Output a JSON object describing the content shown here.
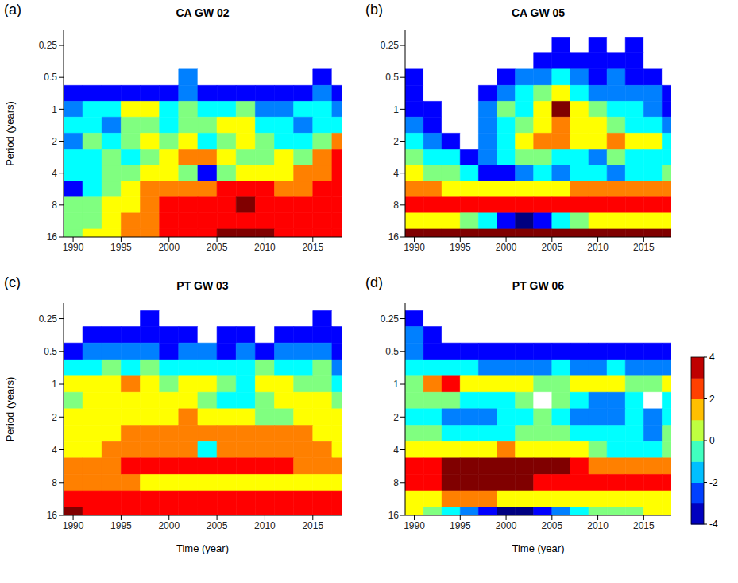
{
  "chart_data": [
    {
      "type": "heatmap",
      "panel": "(a)",
      "title": "CA GW 02",
      "ylabel": "Period (years)",
      "x": [
        1990,
        1992,
        1994,
        1996,
        1998,
        2000,
        2002,
        2004,
        2006,
        2008,
        2010,
        2012,
        2014,
        2016,
        2018
      ],
      "y": [
        0.25,
        0.35,
        0.5,
        0.71,
        1,
        1.41,
        2,
        2.83,
        4,
        5.66,
        8,
        11.31,
        16
      ],
      "cells": [
        [
          null,
          null,
          null,
          null,
          null,
          null,
          null,
          null,
          null,
          null,
          null,
          null,
          null,
          null,
          null
        ],
        [
          null,
          null,
          null,
          null,
          null,
          null,
          null,
          null,
          null,
          null,
          null,
          null,
          null,
          null,
          null
        ],
        [
          null,
          null,
          null,
          null,
          null,
          null,
          -2,
          null,
          null,
          null,
          null,
          null,
          null,
          -3,
          null
        ],
        [
          -3,
          -3,
          -3,
          -3,
          -3,
          -3,
          -2,
          -3,
          -3,
          -3,
          -3,
          -3,
          -3,
          -2,
          -3
        ],
        [
          -2,
          -1,
          -1,
          1,
          1,
          -1,
          0,
          -1,
          -1,
          0,
          -2,
          -2,
          -1,
          -1,
          -2
        ],
        [
          -1,
          -1,
          -2,
          0,
          0,
          -1,
          0,
          0,
          1,
          1,
          -1,
          -1,
          -2,
          -1,
          -1
        ],
        [
          -2,
          0,
          -1,
          0,
          1,
          0,
          1,
          -1,
          0,
          1,
          0,
          -1,
          -1,
          0,
          2
        ],
        [
          -1,
          -1,
          0,
          -1,
          0,
          1,
          2,
          2,
          1,
          0,
          0,
          1,
          0,
          2,
          3
        ],
        [
          -1,
          -1,
          0,
          0,
          1,
          1,
          0,
          -3,
          0,
          1,
          1,
          1,
          2,
          2,
          3
        ],
        [
          -3,
          -1,
          0,
          1,
          2,
          2,
          2,
          2,
          3,
          3,
          3,
          2,
          2,
          3,
          3
        ],
        [
          0,
          0,
          1,
          1,
          2,
          3,
          3,
          3,
          3,
          4,
          3,
          3,
          3,
          3,
          3
        ],
        [
          0,
          0,
          1,
          2,
          2,
          3,
          3,
          3,
          3,
          3,
          3,
          3,
          3,
          3,
          3
        ],
        [
          0,
          1,
          1,
          2,
          2,
          3,
          3,
          3,
          4,
          4,
          4,
          3,
          3,
          3,
          3
        ]
      ],
      "xlim": [
        1989,
        2018
      ],
      "xticks": [
        1990,
        1995,
        2000,
        2005,
        2010,
        2015
      ],
      "ylim": [
        0.18,
        16
      ],
      "yticks": [
        0.25,
        0.5,
        1,
        2,
        4,
        8,
        16
      ],
      "log": "y"
    },
    {
      "type": "heatmap",
      "panel": "(b)",
      "title": "CA GW 05",
      "x": [
        1990,
        1992,
        1994,
        1996,
        1998,
        2000,
        2002,
        2004,
        2006,
        2008,
        2010,
        2012,
        2014,
        2016,
        2018
      ],
      "y": [
        0.25,
        0.35,
        0.5,
        0.71,
        1,
        1.41,
        2,
        2.83,
        4,
        5.66,
        8,
        11.31,
        16
      ],
      "cells": [
        [
          null,
          null,
          null,
          null,
          null,
          null,
          null,
          null,
          -3,
          null,
          -3,
          null,
          -3,
          null,
          null
        ],
        [
          null,
          null,
          null,
          null,
          null,
          null,
          null,
          -3,
          -3,
          -3,
          -3,
          -3,
          -3,
          null,
          null
        ],
        [
          -3,
          null,
          null,
          null,
          null,
          -3,
          -2,
          -2,
          -1,
          -2,
          -3,
          -2,
          -3,
          -3,
          null
        ],
        [
          -3,
          null,
          null,
          null,
          -3,
          -2,
          -1,
          0,
          1,
          -1,
          -2,
          -2,
          -2,
          -2,
          -3
        ],
        [
          -3,
          -3,
          null,
          null,
          -2,
          0,
          -1,
          1,
          4,
          1,
          0,
          -1,
          -1,
          -2,
          -3
        ],
        [
          -2,
          -3,
          null,
          null,
          -2,
          -1,
          0,
          1,
          2,
          1,
          1,
          0,
          -1,
          -1,
          -2
        ],
        [
          -1,
          -2,
          -3,
          null,
          -2,
          -1,
          1,
          2,
          2,
          1,
          1,
          2,
          1,
          1,
          -1
        ],
        [
          0,
          -1,
          -1,
          -3,
          -2,
          -1,
          0,
          0,
          -1,
          -1,
          -2,
          0,
          -1,
          -1,
          -1
        ],
        [
          1,
          0,
          0,
          -1,
          -3,
          -3,
          -2,
          -1,
          -2,
          -1,
          -1,
          -2,
          -1,
          -1,
          0
        ],
        [
          2,
          2,
          1,
          1,
          1,
          1,
          1,
          1,
          1,
          2,
          2,
          2,
          2,
          2,
          2
        ],
        [
          3,
          3,
          3,
          3,
          3,
          3,
          3,
          3,
          3,
          3,
          3,
          3,
          3,
          3,
          3
        ],
        [
          1,
          1,
          1,
          0,
          -1,
          -3,
          -4,
          -3,
          -1,
          0,
          1,
          1,
          1,
          1,
          1
        ],
        [
          4,
          4,
          4,
          4,
          4,
          4,
          4,
          4,
          4,
          4,
          4,
          4,
          4,
          4,
          4
        ]
      ],
      "xlim": [
        1989,
        2018
      ],
      "xticks": [
        1990,
        1995,
        2000,
        2005,
        2010,
        2015
      ],
      "ylim": [
        0.18,
        16
      ],
      "yticks": [
        0.25,
        0.5,
        1,
        2,
        4,
        8,
        16
      ],
      "log": "y"
    },
    {
      "type": "heatmap",
      "panel": "(c)",
      "title": "PT GW 03",
      "ylabel": "Period (years)",
      "xlabel": "Time (year)",
      "x": [
        1990,
        1992,
        1994,
        1996,
        1998,
        2000,
        2002,
        2004,
        2006,
        2008,
        2010,
        2012,
        2014,
        2016,
        2018
      ],
      "y": [
        0.25,
        0.35,
        0.5,
        0.71,
        1,
        1.41,
        2,
        2.83,
        4,
        5.66,
        8,
        11.31,
        16
      ],
      "cells": [
        [
          null,
          null,
          null,
          null,
          -3,
          null,
          null,
          null,
          null,
          null,
          null,
          null,
          null,
          -3,
          null
        ],
        [
          null,
          -3,
          -3,
          -3,
          -3,
          -3,
          -3,
          null,
          -3,
          -3,
          null,
          -3,
          -3,
          -3,
          -3
        ],
        [
          -3,
          -2,
          -2,
          -2,
          -2,
          -3,
          -2,
          -2,
          -3,
          -2,
          -3,
          -2,
          -2,
          -2,
          -3
        ],
        [
          -1,
          -1,
          0,
          -1,
          0,
          -1,
          -1,
          -1,
          -1,
          -1,
          0,
          -1,
          -1,
          0,
          -2
        ],
        [
          1,
          1,
          1,
          2,
          1,
          0,
          1,
          1,
          0,
          -1,
          1,
          1,
          0,
          0,
          -1
        ],
        [
          0,
          1,
          1,
          1,
          1,
          1,
          1,
          0,
          -1,
          -1,
          0,
          1,
          1,
          1,
          0
        ],
        [
          1,
          1,
          1,
          1,
          1,
          1,
          2,
          1,
          1,
          1,
          0,
          0,
          1,
          1,
          1
        ],
        [
          1,
          1,
          1,
          2,
          2,
          2,
          2,
          2,
          2,
          2,
          2,
          2,
          2,
          1,
          1
        ],
        [
          1,
          1,
          2,
          2,
          2,
          2,
          2,
          -1,
          2,
          2,
          2,
          2,
          2,
          2,
          1
        ],
        [
          2,
          2,
          2,
          3,
          3,
          3,
          3,
          3,
          3,
          3,
          3,
          3,
          2,
          2,
          2
        ],
        [
          2,
          2,
          2,
          2,
          1,
          1,
          1,
          1,
          1,
          1,
          1,
          1,
          1,
          1,
          1
        ],
        [
          3,
          3,
          3,
          3,
          3,
          3,
          3,
          3,
          3,
          3,
          3,
          3,
          3,
          3,
          3
        ],
        [
          4,
          3,
          3,
          3,
          3,
          3,
          3,
          3,
          3,
          3,
          3,
          3,
          3,
          3,
          3
        ]
      ],
      "xlim": [
        1989,
        2018
      ],
      "xticks": [
        1990,
        1995,
        2000,
        2005,
        2010,
        2015
      ],
      "ylim": [
        0.18,
        16
      ],
      "yticks": [
        0.25,
        0.5,
        1,
        2,
        4,
        8,
        16
      ],
      "log": "y"
    },
    {
      "type": "heatmap",
      "panel": "(d)",
      "title": "PT GW 06",
      "xlabel": "Time (year)",
      "x": [
        1990,
        1992,
        1994,
        1996,
        1998,
        2000,
        2002,
        2004,
        2006,
        2008,
        2010,
        2012,
        2014,
        2016,
        2018
      ],
      "y": [
        0.25,
        0.35,
        0.5,
        0.71,
        1,
        1.41,
        2,
        2.83,
        4,
        5.66,
        8,
        11.31,
        16
      ],
      "cells": [
        [
          -3,
          null,
          null,
          null,
          null,
          null,
          null,
          null,
          null,
          null,
          null,
          null,
          null,
          null,
          null
        ],
        [
          -2,
          -3,
          null,
          null,
          null,
          null,
          null,
          null,
          null,
          null,
          null,
          null,
          null,
          null,
          null
        ],
        [
          -2,
          -3,
          -3,
          -3,
          -3,
          -3,
          -3,
          -3,
          -3,
          -3,
          -3,
          -3,
          -3,
          -3,
          -3
        ],
        [
          -1,
          -1,
          -1,
          -1,
          -2,
          -2,
          -2,
          -2,
          -1,
          -2,
          -2,
          -1,
          -2,
          -2,
          -2
        ],
        [
          0,
          2,
          3,
          1,
          1,
          1,
          1,
          0,
          0,
          1,
          1,
          1,
          0,
          0,
          1
        ],
        [
          0,
          0,
          0,
          -1,
          -1,
          -1,
          0,
          null,
          0,
          -1,
          -2,
          -2,
          -1,
          null,
          -1
        ],
        [
          -1,
          -1,
          -2,
          -2,
          -2,
          -1,
          -1,
          0,
          -1,
          -2,
          -2,
          -2,
          -1,
          -2,
          -1
        ],
        [
          0,
          0,
          -1,
          -1,
          -1,
          -1,
          0,
          0,
          0,
          -1,
          -1,
          -1,
          -1,
          -2,
          0
        ],
        [
          1,
          1,
          1,
          1,
          1,
          2,
          1,
          1,
          1,
          1,
          0,
          -1,
          -1,
          -1,
          0
        ],
        [
          3,
          3,
          4,
          4,
          4,
          4,
          4,
          4,
          4,
          3,
          2,
          2,
          2,
          2,
          2
        ],
        [
          3,
          3,
          4,
          4,
          4,
          4,
          4,
          3,
          3,
          3,
          3,
          3,
          3,
          3,
          3
        ],
        [
          1,
          1,
          2,
          2,
          2,
          1,
          1,
          1,
          1,
          1,
          1,
          1,
          1,
          1,
          1
        ],
        [
          1,
          0,
          -1,
          -2,
          -3,
          -4,
          -4,
          -3,
          -2,
          -1,
          0,
          0,
          0,
          1,
          1
        ]
      ],
      "xlim": [
        1989,
        2018
      ],
      "xticks": [
        1990,
        1995,
        2000,
        2005,
        2010,
        2015
      ],
      "ylim": [
        0.18,
        16
      ],
      "yticks": [
        0.25,
        0.5,
        1,
        2,
        4,
        8,
        16
      ],
      "log": "y",
      "colorbar": {
        "range": [
          -4,
          4
        ],
        "ticks": [
          -4,
          -2,
          0,
          2,
          4
        ]
      }
    }
  ]
}
